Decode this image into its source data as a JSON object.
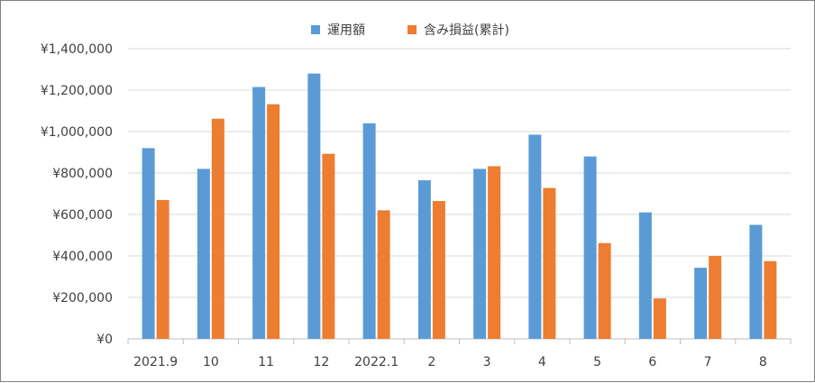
{
  "chart_data": {
    "type": "bar",
    "categories": [
      "2021.9",
      "10",
      "11",
      "12",
      "2022.1",
      "2",
      "3",
      "4",
      "5",
      "6",
      "7",
      "8"
    ],
    "series": [
      {
        "name": "運用額",
        "color": "#5B9BD5",
        "values": [
          920000,
          820000,
          1215000,
          1280000,
          1040000,
          765000,
          820000,
          985000,
          880000,
          610000,
          343000,
          550000
        ]
      },
      {
        "name": "含み損益(累計)",
        "color": "#ED7D31",
        "values": [
          670000,
          1062000,
          1132000,
          893000,
          620000,
          665000,
          833000,
          728000,
          462000,
          195000,
          400000,
          375000
        ]
      }
    ],
    "y_ticks": [
      "¥0",
      "¥200,000",
      "¥400,000",
      "¥600,000",
      "¥800,000",
      "¥1,000,000",
      "¥1,200,000",
      "¥1,400,000"
    ],
    "ylim": [
      0,
      1400000
    ],
    "grid": true,
    "legend": "top-center"
  }
}
